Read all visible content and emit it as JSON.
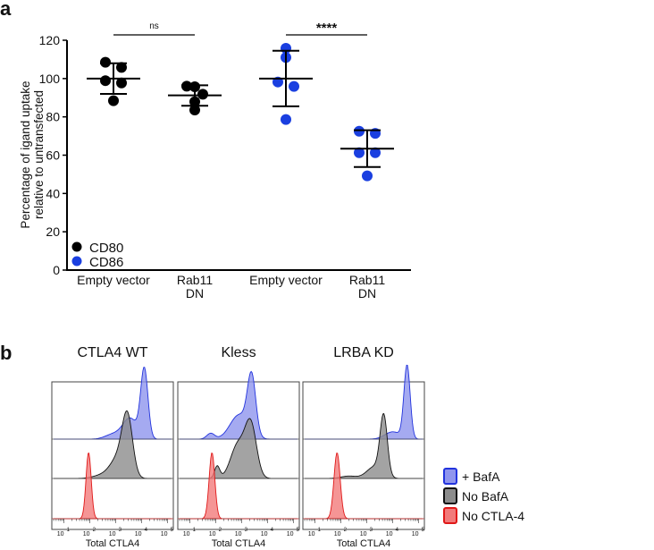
{
  "chart_data": [
    {
      "panel_label": "a",
      "type": "scatter",
      "ylabel_lines": [
        "Percentage of igand uptake",
        "relative to untransfected"
      ],
      "ylim": [
        0,
        120
      ],
      "yticks": [
        0,
        20,
        40,
        60,
        80,
        100,
        120
      ],
      "ytick_labels": [
        "0",
        "20",
        "40",
        "60",
        "80",
        "100",
        "120"
      ],
      "categories": [
        {
          "lines": [
            "Empty vector"
          ],
          "series": "CD80"
        },
        {
          "lines": [
            "Rab11",
            "DN"
          ],
          "series": "CD80"
        },
        {
          "lines": [
            "Empty vector"
          ],
          "series": "CD86"
        },
        {
          "lines": [
            "Rab11",
            "DN"
          ],
          "series": "CD86"
        }
      ],
      "series": [
        {
          "name": "CD80",
          "color": "#000000"
        },
        {
          "name": "CD86",
          "color": "#1a3fe0"
        }
      ],
      "groups": [
        {
          "points": [
            108.5,
            105.8,
            98.9,
            97.7,
            88.4
          ],
          "offsets": [
            -1,
            1,
            -1,
            1,
            0
          ],
          "mean": 100,
          "sd_upper": 108,
          "sd_lower": 92
        },
        {
          "points": [
            96,
            95.7,
            91.8,
            87.9,
            83.6
          ],
          "offsets": [
            -1,
            0,
            1,
            0,
            0
          ],
          "mean": 91.2,
          "sd_upper": 96.5,
          "sd_lower": 85.8
        },
        {
          "points": [
            115.8,
            111,
            98.2,
            95.9,
            78.6
          ],
          "offsets": [
            0,
            0,
            -1,
            1,
            0
          ],
          "mean": 100,
          "sd_upper": 114.5,
          "sd_lower": 85.5
        },
        {
          "points": [
            72.5,
            71.4,
            61.3,
            61.3,
            49.2
          ],
          "offsets": [
            -1,
            1,
            -1,
            1,
            0
          ],
          "mean": 63.4,
          "sd_upper": 73,
          "sd_lower": 53.8
        }
      ],
      "significance": [
        {
          "from": 0,
          "to": 1,
          "label": "ns"
        },
        {
          "from": 2,
          "to": 3,
          "label": "****"
        }
      ],
      "legend": [
        "CD80",
        "CD86"
      ],
      "legend_position": "bottom-left"
    },
    {
      "panel_label": "b",
      "type": "area",
      "xlabel": "Total CTLA4",
      "xscale": "log10",
      "xlim_log10": [
        0.6,
        5.15
      ],
      "xtick_labels": [
        {
          "base": "10",
          "exp": "1"
        },
        {
          "base": "10",
          "exp": "2"
        },
        {
          "base": "10",
          "exp": "3"
        },
        {
          "base": "10",
          "exp": "4"
        },
        {
          "base": "10",
          "exp": "5"
        }
      ],
      "legend": [
        {
          "label": "+ BafA",
          "fill": "#8f95ee",
          "stroke": "#2233dd"
        },
        {
          "label": "No BafA",
          "fill": "#8c8c8c",
          "stroke": "#111111"
        },
        {
          "label": "No CTLA-4",
          "fill": "#f27a7a",
          "stroke": "#e01818"
        }
      ],
      "legend_position": "right",
      "panels": [
        {
          "title": "CTLA4 WT",
          "tracks": [
            {
              "series": 0,
              "rel_height": 1.03,
              "components": [
                [
                  4.1,
                  0.14,
                  1
                ],
                [
                  3.55,
                  0.28,
                  0.3
                ],
                [
                  2.9,
                  0.3,
                  0.07
                ]
              ]
            },
            {
              "series": 1,
              "rel_height": 0.97,
              "components": [
                [
                  3.45,
                  0.2,
                  1
                ],
                [
                  3.1,
                  0.3,
                  0.35
                ],
                [
                  2.5,
                  0.35,
                  0.06
                ]
              ]
            },
            {
              "series": 2,
              "rel_height": 0.94,
              "components": [
                [
                  1.95,
                  0.1,
                  1
                ]
              ]
            }
          ]
        },
        {
          "title": "Kless",
          "tracks": [
            {
              "series": 0,
              "rel_height": 0.97,
              "components": [
                [
                  3.38,
                  0.16,
                  1
                ],
                [
                  2.9,
                  0.35,
                  0.42
                ],
                [
                  1.8,
                  0.15,
                  0.1
                ]
              ]
            },
            {
              "series": 1,
              "rel_height": 0.86,
              "components": [
                [
                  3.35,
                  0.22,
                  0.85
                ],
                [
                  2.85,
                  0.28,
                  0.55
                ],
                [
                  2.05,
                  0.1,
                  0.2
                ]
              ]
            },
            {
              "series": 2,
              "rel_height": 0.94,
              "components": [
                [
                  1.85,
                  0.11,
                  1
                ]
              ]
            }
          ]
        },
        {
          "title": "LRBA KD",
          "tracks": [
            {
              "series": 0,
              "rel_height": 1.06,
              "components": [
                [
                  4.55,
                  0.12,
                  1
                ],
                [
                  4.0,
                  0.3,
                  0.1
                ]
              ]
            },
            {
              "series": 1,
              "rel_height": 0.93,
              "components": [
                [
                  3.65,
                  0.14,
                  1
                ],
                [
                  3.3,
                  0.3,
                  0.2
                ],
                [
                  2.3,
                  0.3,
                  0.04
                ]
              ]
            },
            {
              "series": 2,
              "rel_height": 0.94,
              "components": [
                [
                  1.85,
                  0.12,
                  1
                ]
              ]
            }
          ]
        }
      ]
    }
  ]
}
